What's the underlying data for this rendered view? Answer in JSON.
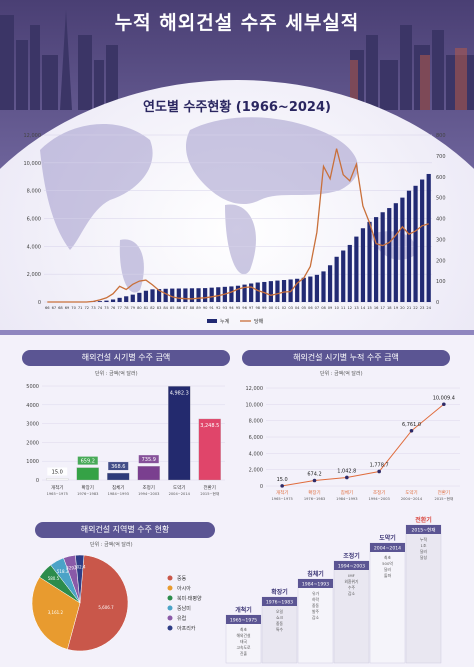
{
  "page": {
    "title": "누적 해외건설 수주 세부실적"
  },
  "main_chart": {
    "subtitle": "연도별 수주현황 (1966~2024)",
    "legend": [
      "누계",
      "당해"
    ],
    "chart_data": {
      "type": "bar+line",
      "x": [
        "66",
        "67",
        "68",
        "69",
        "70",
        "71",
        "72",
        "73",
        "74",
        "75",
        "76",
        "77",
        "78",
        "79",
        "80",
        "81",
        "82",
        "83",
        "84",
        "85",
        "86",
        "87",
        "88",
        "89",
        "90",
        "91",
        "92",
        "93",
        "94",
        "95",
        "96",
        "97",
        "98",
        "99",
        "00",
        "01",
        "02",
        "03",
        "04",
        "05",
        "06",
        "07",
        "08",
        "09",
        "10",
        "11",
        "12",
        "13",
        "14",
        "15",
        "16",
        "17",
        "18",
        "19",
        "20",
        "21",
        "22",
        "23",
        "24"
      ],
      "series": [
        {
          "name": "누계",
          "axis": "left",
          "type": "bar",
          "values": [
            0,
            0,
            0,
            0,
            0,
            10,
            15,
            30,
            60,
            100,
            180,
            300,
            410,
            530,
            660,
            810,
            910,
            930,
            950,
            965,
            970,
            975,
            985,
            990,
            1000,
            1030,
            1060,
            1090,
            1120,
            1170,
            1250,
            1330,
            1400,
            1440,
            1500,
            1540,
            1580,
            1620,
            1670,
            1740,
            1830,
            1950,
            2200,
            2640,
            3250,
            3700,
            4100,
            4700,
            5300,
            5760,
            6100,
            6450,
            6750,
            7100,
            7500,
            8000,
            8350,
            8800,
            9200
          ]
        },
        {
          "name": "당해",
          "axis": "right",
          "type": "line",
          "values": [
            0,
            0,
            0,
            0,
            0,
            0,
            0,
            3,
            10,
            20,
            40,
            75,
            60,
            85,
            100,
            105,
            82,
            55,
            40,
            25,
            18,
            16,
            15,
            18,
            20,
            25,
            30,
            38,
            48,
            62,
            70,
            72,
            55,
            45,
            32,
            40,
            48,
            50,
            90,
            115,
            170,
            335,
            650,
            590,
            735,
            610,
            580,
            660,
            460,
            380,
            280,
            270,
            285,
            320,
            360,
            325,
            340,
            365,
            375
          ]
        }
      ],
      "ylim_left": [
        0,
        12000
      ],
      "ylim_right": [
        0,
        800
      ],
      "yticks_left": [
        "12,000",
        "10,000",
        "8,000",
        "6,000",
        "4,000",
        "2,000",
        "0"
      ],
      "yticks_right": [
        "800",
        "700",
        "600",
        "500",
        "400",
        "300",
        "200",
        "100",
        "0"
      ]
    }
  },
  "period_chart": {
    "title": "해외건설 시기별 수주 금액",
    "unit": "단위 : 금액(억 달러)",
    "chart_data": {
      "type": "bar",
      "categories": [
        "개척기",
        "확장기",
        "침체기",
        "조정기",
        "도약기",
        "전환기"
      ],
      "periods": [
        "1965~1975",
        "1976~1983",
        "1984~1993",
        "1994~2003",
        "2004~2014",
        "2015~현재"
      ],
      "values": [
        15.0,
        659.2,
        368.6,
        735.9,
        4982.3,
        3248.5
      ],
      "value_labels": [
        "15.0",
        "659.2",
        "368.6",
        "735.9",
        "4,982.3",
        "3,248.5"
      ],
      "colors": [
        "#ffffff",
        "#35a246",
        "#2e3b7a",
        "#7a3f8f",
        "#232a6e",
        "#e0456a"
      ],
      "ylim": [
        0,
        5000
      ],
      "yticks": [
        "5000",
        "4000",
        "3000",
        "2000",
        "1000",
        "0"
      ]
    }
  },
  "cumulative_chart": {
    "title": "해외건설 시기별 누적 수주 금액",
    "unit": "단위 : 금액(억 달러)",
    "chart_data": {
      "type": "line",
      "categories": [
        "개척기",
        "확장기",
        "침체기",
        "조정기",
        "도약기",
        "전환기"
      ],
      "periods": [
        "1965~1975",
        "1976~1983",
        "1984~1993",
        "1994~2003",
        "2004~2014",
        "2015~현재"
      ],
      "values": [
        15.0,
        674.2,
        1042.8,
        1778.7,
        6761.0,
        10009.4
      ],
      "value_labels": [
        "15.0",
        "674.2",
        "1,042.8",
        "1,778.7",
        "6,761.0",
        "10,009.4"
      ],
      "ylim": [
        0,
        12000
      ],
      "yticks": [
        "12,000",
        "10,000",
        "8,000",
        "6,000",
        "4,000",
        "2,000",
        "0"
      ]
    }
  },
  "region_chart": {
    "title": "해외건설 지역별 수주 현황",
    "unit": "단위 : 금액(억 달러)",
    "chart_data": {
      "type": "pie",
      "labels": [
        "중동",
        "아시아",
        "북미·태평양",
        "중남미",
        "유럽",
        "아프리카"
      ],
      "values": [
        5606.7,
        3161.2,
        580.5,
        518.3,
        429.8,
        302.4
      ],
      "value_labels": [
        "5,606.7",
        "3,161.2",
        "580.5",
        "518.3",
        "429.8",
        "302.4"
      ],
      "colors": [
        "#c9574a",
        "#e89b2f",
        "#2c8c4c",
        "#4ba3c7",
        "#8a5aa8",
        "#2e3d86"
      ]
    }
  },
  "timeline": {
    "steps": [
      {
        "name": "개척기",
        "period": "1965~1975",
        "desc": "최초 해외건설 태국 고속도로 진출"
      },
      {
        "name": "확장기",
        "period": "1976~1983",
        "desc": "오일 쇼크 중동 특수"
      },
      {
        "name": "침체기",
        "period": "1984~1993",
        "desc": "유가 하락 중동 발주 감소"
      },
      {
        "name": "조정기",
        "period": "1994~2003",
        "desc": "IMF 외환위기 수주 감소"
      },
      {
        "name": "도약기",
        "period": "2004~2014",
        "desc": "최초 500억 달러 돌파"
      },
      {
        "name": "전환기",
        "period": "2015~현재",
        "desc": "누적 1조 달러 달성"
      }
    ]
  }
}
